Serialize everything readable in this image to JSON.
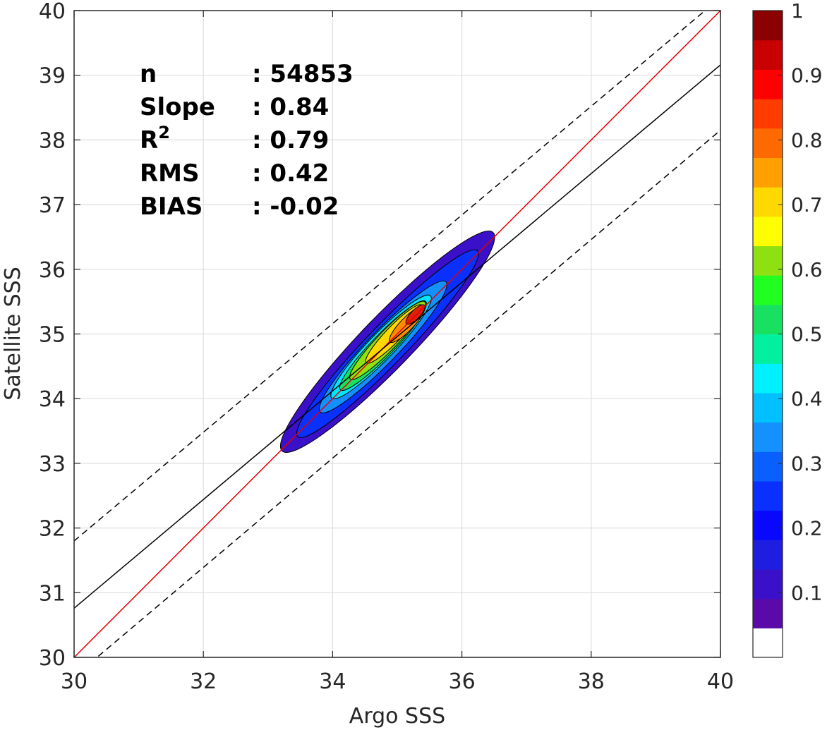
{
  "chart_data": {
    "type": "contour",
    "x_label": "Argo SSS",
    "y_label": "Satellite SSS",
    "xlim": [
      30,
      40
    ],
    "ylim": [
      30,
      40
    ],
    "x_ticks": [
      "30",
      "32",
      "34",
      "36",
      "38",
      "40"
    ],
    "y_ticks": [
      "30",
      "31",
      "32",
      "33",
      "34",
      "35",
      "36",
      "37",
      "38",
      "39",
      "40"
    ],
    "grid": true,
    "stats": [
      {
        "name": "n",
        "value": ": 54853"
      },
      {
        "name": "Slope",
        "value": ": 0.84"
      },
      {
        "name": "R",
        "sup": "2",
        "value": ": 0.79"
      },
      {
        "name": "RMS",
        "value": ": 0.42"
      },
      {
        "name": "BIAS",
        "value": ": -0.02"
      }
    ],
    "lines": [
      {
        "kind": "one-to-one",
        "color": "#e00000",
        "points": [
          [
            30,
            30
          ],
          [
            40,
            40
          ]
        ]
      },
      {
        "kind": "regression",
        "color": "#000000",
        "points": [
          [
            30,
            30.76
          ],
          [
            40,
            39.16
          ]
        ]
      },
      {
        "kind": "offset-upper",
        "color": "#000000",
        "dashed": true,
        "points": [
          [
            30,
            31.8
          ],
          [
            40,
            40.2
          ]
        ]
      },
      {
        "kind": "offset-lower",
        "color": "#000000",
        "dashed": true,
        "points": [
          [
            30,
            29.7
          ],
          [
            40,
            38.15
          ]
        ]
      }
    ],
    "density_contours": [
      {
        "level": 0.05,
        "color": "#3a10c8",
        "cx": 34.85,
        "cy": 34.88,
        "rmaj": 2.35,
        "rmin": 0.4,
        "angle": 46
      },
      {
        "level": 0.15,
        "color": "#0a30ff",
        "cx": 34.85,
        "cy": 34.85,
        "rmaj": 2.0,
        "rmin": 0.3,
        "angle": 46
      },
      {
        "level": 0.25,
        "color": "#1590ff",
        "cx": 34.78,
        "cy": 34.8,
        "rmaj": 1.4,
        "rmin": 0.24,
        "angle": 46
      },
      {
        "level": 0.35,
        "color": "#00e6ff",
        "cx": 34.75,
        "cy": 34.8,
        "rmaj": 1.1,
        "rmin": 0.2,
        "angle": 46
      },
      {
        "level": 0.45,
        "color": "#18e060",
        "cx": 34.78,
        "cy": 34.82,
        "rmaj": 0.95,
        "rmin": 0.17,
        "angle": 46
      },
      {
        "level": 0.55,
        "color": "#8fe010",
        "cx": 34.85,
        "cy": 34.9,
        "rmaj": 0.83,
        "rmin": 0.15,
        "angle": 46
      },
      {
        "level": 0.65,
        "color": "#ffd800",
        "cx": 34.95,
        "cy": 35.0,
        "rmaj": 0.62,
        "rmin": 0.12,
        "angle": 46
      },
      {
        "level": 0.75,
        "color": "#ff8c00",
        "cx": 35.15,
        "cy": 35.15,
        "rmaj": 0.38,
        "rmin": 0.1,
        "angle": 46
      },
      {
        "level": 0.85,
        "color": "#e02000",
        "cx": 35.28,
        "cy": 35.3,
        "rmaj": 0.2,
        "rmin": 0.07,
        "angle": 46
      }
    ],
    "colorbar": {
      "labels": [
        "0.1",
        "0.2",
        "0.3",
        "0.4",
        "0.5",
        "0.6",
        "0.7",
        "0.8",
        "0.9",
        "1"
      ],
      "label_values": [
        0.1,
        0.2,
        0.3,
        0.4,
        0.5,
        0.6,
        0.7,
        0.8,
        0.9,
        1.0
      ],
      "range": [
        0,
        1
      ],
      "bins": [
        "#ffffff",
        "#5a0aa8",
        "#3a10c8",
        "#1e1ee0",
        "#0808ff",
        "#0a30ff",
        "#0a60ff",
        "#1590ff",
        "#00c0ff",
        "#00f0ff",
        "#00f0a0",
        "#18e060",
        "#20ff20",
        "#8fe010",
        "#ffff00",
        "#ffd800",
        "#ffa000",
        "#ff6a00",
        "#ff3c00",
        "#ff0000",
        "#c80000",
        "#8b0000"
      ]
    }
  }
}
